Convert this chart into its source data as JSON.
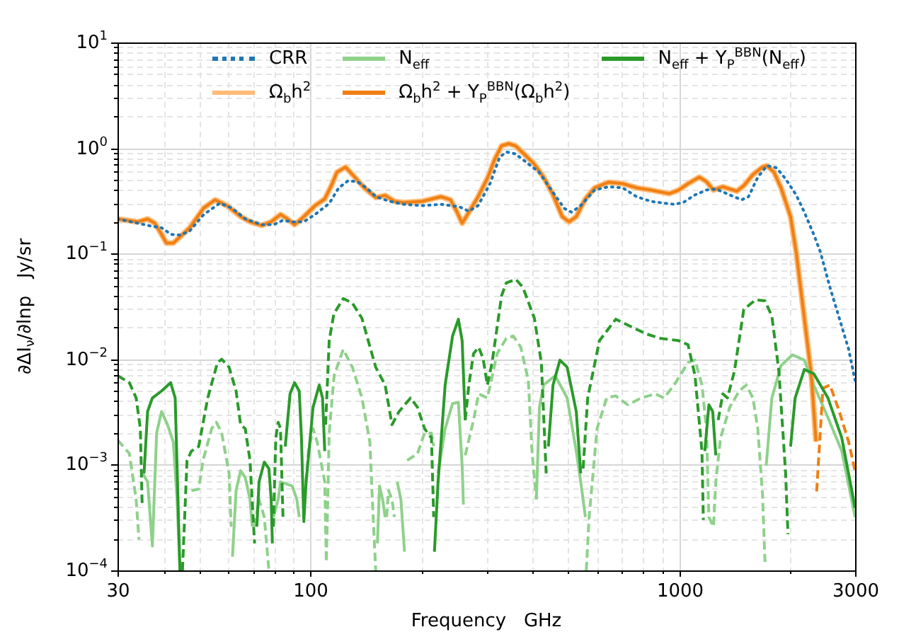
{
  "chart_data": {
    "type": "line",
    "xlabel": "Frequency   GHz",
    "ylabel": "∂ΔI$_{ν}$/∂lnp   Jy/sr",
    "log": "xy",
    "xlim": [
      30,
      3000
    ],
    "ylim": [
      0.0001,
      10
    ],
    "xticks": [
      30,
      {
        "value": 40,
        "label": null
      },
      {
        "value": 50,
        "label": null
      },
      {
        "value": 60,
        "label": null
      },
      {
        "value": 70,
        "label": null
      },
      {
        "value": 80,
        "label": null
      },
      {
        "value": 90,
        "label": null
      },
      100,
      {
        "value": 200,
        "label": null
      },
      {
        "value": 300,
        "label": null
      },
      {
        "value": 400,
        "label": null
      },
      {
        "value": 500,
        "label": null
      },
      {
        "value": 600,
        "label": null
      },
      {
        "value": 700,
        "label": null
      },
      {
        "value": 800,
        "label": null
      },
      {
        "value": 900,
        "label": null
      },
      1000,
      {
        "value": 2000,
        "label": null
      },
      3000
    ],
    "yticks": [
      {
        "value": 0.0001,
        "label": "10$^{−4}$"
      },
      {
        "value": 0.0002,
        "label": null
      },
      {
        "value": 0.0003,
        "label": null
      },
      {
        "value": 0.0004,
        "label": null
      },
      {
        "value": 0.0005,
        "label": null
      },
      {
        "value": 0.0006,
        "label": null
      },
      {
        "value": 0.0007,
        "label": null
      },
      {
        "value": 0.0008,
        "label": null
      },
      {
        "value": 0.0009,
        "label": null
      },
      {
        "value": 0.001,
        "label": "10$^{−3}$"
      },
      {
        "value": 0.002,
        "label": null
      },
      {
        "value": 0.003,
        "label": null
      },
      {
        "value": 0.004,
        "label": null
      },
      {
        "value": 0.005,
        "label": null
      },
      {
        "value": 0.006,
        "label": null
      },
      {
        "value": 0.007,
        "label": null
      },
      {
        "value": 0.008,
        "label": null
      },
      {
        "value": 0.009,
        "label": null
      },
      {
        "value": 0.01,
        "label": "10$^{−2}$"
      },
      {
        "value": 0.02,
        "label": null
      },
      {
        "value": 0.03,
        "label": null
      },
      {
        "value": 0.04,
        "label": null
      },
      {
        "value": 0.05,
        "label": null
      },
      {
        "value": 0.06,
        "label": null
      },
      {
        "value": 0.07,
        "label": null
      },
      {
        "value": 0.08,
        "label": null
      },
      {
        "value": 0.09,
        "label": null
      },
      {
        "value": 0.1,
        "label": "10$^{−1}$"
      },
      {
        "value": 0.2,
        "label": null
      },
      {
        "value": 0.3,
        "label": null
      },
      {
        "value": 0.4,
        "label": null
      },
      {
        "value": 0.5,
        "label": null
      },
      {
        "value": 0.6,
        "label": null
      },
      {
        "value": 0.7,
        "label": null
      },
      {
        "value": 0.8,
        "label": null
      },
      {
        "value": 0.9,
        "label": null
      },
      {
        "value": 1,
        "label": "10$^{0}$"
      },
      {
        "value": 2,
        "label": null
      },
      {
        "value": 3,
        "label": null
      },
      {
        "value": 4,
        "label": null
      },
      {
        "value": 5,
        "label": null
      },
      {
        "value": 6,
        "label": null
      },
      {
        "value": 7,
        "label": null
      },
      {
        "value": 8,
        "label": null
      },
      {
        "value": 9,
        "label": null
      },
      {
        "value": 10,
        "label": "10$^{1}$"
      }
    ],
    "grid": true,
    "legend": "top",
    "series": [
      {
        "name": "CRR",
        "color": "#1f77b4",
        "line_style": "dotted",
        "x": [
          30,
          34.1,
          36.2,
          39.5,
          41.9,
          44.4,
          47.1,
          51.4,
          56.8,
          61.2,
          66.7,
          73.8,
          79.5,
          84.2,
          89.2,
          95.9,
          103,
          112.6,
          119.4,
          126.6,
          134,
          142,
          150.6,
          164,
          179,
          201,
          226,
          254,
          269,
          285,
          307,
          326,
          340,
          360,
          382,
          417,
          455,
          489,
          511,
          541,
          590,
          644,
          703,
          767,
          837,
          914,
          968,
          1026,
          1104,
          1186,
          1257,
          1371,
          1476,
          1542,
          1634,
          1731,
          1836,
          1944,
          2076,
          2185,
          2317,
          2415,
          2564,
          2718,
          2880,
          3000
        ],
        "values": [
          0.213,
          0.194,
          0.185,
          0.176,
          0.152,
          0.15,
          0.164,
          0.235,
          0.3,
          0.271,
          0.213,
          0.188,
          0.188,
          0.207,
          0.2,
          0.2,
          0.235,
          0.3,
          0.42,
          0.49,
          0.48,
          0.42,
          0.346,
          0.313,
          0.293,
          0.285,
          0.293,
          0.277,
          0.252,
          0.285,
          0.46,
          0.82,
          0.92,
          0.88,
          0.75,
          0.59,
          0.38,
          0.267,
          0.247,
          0.285,
          0.4,
          0.43,
          0.42,
          0.346,
          0.313,
          0.3,
          0.293,
          0.305,
          0.36,
          0.4,
          0.41,
          0.36,
          0.323,
          0.346,
          0.53,
          0.68,
          0.65,
          0.51,
          0.36,
          0.247,
          0.152,
          0.104,
          0.048,
          0.0244,
          0.0125,
          0.0063
        ]
      },
      {
        "name": "Ω$_{b}$h$^{2}$",
        "color": "#ffbb78",
        "x": [
          30,
          34.1,
          36.2,
          37.9,
          39.5,
          40.7,
          42.5,
          44.4,
          47.1,
          51.4,
          55.2,
          59.4,
          64.8,
          68.7,
          73.8,
          78.3,
          83,
          86.7,
          90.6,
          94.6,
          103,
          109.4,
          114,
          118,
          124.6,
          132,
          140,
          150.6,
          159.6,
          169,
          179,
          201,
          226,
          240,
          250,
          258,
          269,
          285,
          303,
          316,
          330,
          345,
          360,
          382,
          404,
          429,
          455,
          482,
          503,
          526,
          557,
          590,
          644,
          703,
          767,
          837,
          940,
          997,
          1057,
          1135,
          1186,
          1239,
          1312,
          1371,
          1433,
          1497,
          1585,
          1683,
          1731,
          1808,
          1889,
          2005,
          2076,
          2185,
          2283,
          2350
        ],
        "values": [
          0.213,
          0.2,
          0.213,
          0.194,
          0.152,
          0.126,
          0.126,
          0.145,
          0.176,
          0.271,
          0.323,
          0.285,
          0.224,
          0.2,
          0.185,
          0.2,
          0.235,
          0.213,
          0.188,
          0.213,
          0.285,
          0.33,
          0.44,
          0.59,
          0.66,
          0.53,
          0.42,
          0.34,
          0.356,
          0.313,
          0.305,
          0.313,
          0.346,
          0.323,
          0.247,
          0.194,
          0.247,
          0.346,
          0.53,
          0.78,
          1.05,
          1.1,
          1.05,
          0.86,
          0.71,
          0.53,
          0.36,
          0.224,
          0.2,
          0.224,
          0.33,
          0.42,
          0.475,
          0.46,
          0.42,
          0.4,
          0.37,
          0.4,
          0.46,
          0.53,
          0.48,
          0.4,
          0.43,
          0.41,
          0.39,
          0.44,
          0.56,
          0.66,
          0.68,
          0.59,
          0.42,
          0.224,
          0.104,
          0.0244,
          0.007,
          0.00166
        ]
      },
      {
        "name": "N$_{eff}$",
        "color": "#8fd18b",
        "x": [
          35.1,
          36.2,
          37.3,
          38.3,
          39.5,
          41,
          42.5,
          43.5,
          44.3,
          50,
          61.5,
          62.9,
          64.7,
          66.6,
          68.6,
          69.6,
          70,
          79.4,
          81.8,
          83,
          89.3,
          91.9,
          93.3,
          95,
          152,
          154,
          157,
          159.5,
          160,
          172,
          176,
          180,
          200,
          222,
          232,
          243,
          252,
          258,
          260,
          300,
          410,
          418,
          429,
          461,
          497,
          526,
          541,
          557,
          1000,
          1722,
          1784,
          1889,
          2028,
          2185,
          2317,
          2532,
          2760,
          3000
        ],
        "values": [
          0.00083,
          0.00069,
          0.00017,
          0.002,
          0.0032,
          0.0024,
          0.00164,
          0.00047,
          0.0001,
          null,
          0.000135,
          0.00057,
          0.00088,
          0.00076,
          0.00047,
          0.00026,
          null,
          0.00032,
          0.00047,
          0.00069,
          0.00063,
          0.00047,
          0.00032,
          null,
          0.00018,
          0.00063,
          0.00047,
          0.00032,
          null,
          0.00069,
          0.00047,
          0.00015,
          null,
          0.00083,
          0.0022,
          0.0038,
          0.0039,
          0.00098,
          0.00042,
          null,
          0.00047,
          0.0035,
          0.0057,
          0.007,
          0.0043,
          0.00135,
          0.00069,
          0.00032,
          null,
          0.00098,
          0.0043,
          0.0087,
          0.011,
          0.0098,
          0.0057,
          0.0028,
          0.00135,
          0.00032
        ]
      },
      {
        "color": "#8fd18b",
        "line_style": "dashed",
        "x": [
          30,
          32.3,
          33.7,
          34.3,
          40,
          47.6,
          49.8,
          51.2,
          54,
          55.6,
          57.5,
          60.2,
          61,
          65,
          70.6,
          72.6,
          75,
          77.2,
          85,
          96,
          98.8,
          101.7,
          104.4,
          109.4,
          110.5,
          112.5,
          116,
          122.8,
          130,
          138,
          145,
          148,
          150.4,
          151,
          161,
          163,
          166.5,
          169,
          170,
          183,
          195.3,
          204,
          213,
          216,
          240,
          263,
          277,
          286,
          302,
          321,
          340,
          355,
          372,
          390,
          399,
          410,
          500,
          560,
          570,
          599,
          636,
          673,
          725,
          790,
          861,
          910,
          969,
          1057,
          1104,
          1153,
          1186,
          1204,
          1239,
          1257,
          1295,
          1371,
          1455,
          1521,
          1585,
          1634,
          1683,
          1709
        ],
        "values": [
          0.00172,
          0.00128,
          0.00047,
          0.000196,
          null,
          0.00057,
          0.00059,
          0.00111,
          0.0022,
          0.00253,
          0.002,
          0.00083,
          0.00026,
          null,
          0.00026,
          0.00047,
          0.00032,
          0.0001,
          null,
          0.00039,
          0.00135,
          0.0022,
          0.00164,
          0.00069,
          0.00012,
          0.002,
          0.007,
          0.0124,
          0.0084,
          0.0043,
          0.00164,
          0.00032,
          0.0001,
          null,
          0.00032,
          0.00057,
          0.00047,
          0.00032,
          null,
          0.0011,
          0.00128,
          0.002,
          0.002,
          0.0015,
          null,
          0.00123,
          0.00265,
          0.0047,
          0.0043,
          0.0113,
          0.0158,
          0.0166,
          0.013,
          0.0063,
          0.00135,
          0.00047,
          null,
          0.0001,
          0.00032,
          0.0022,
          0.0043,
          0.0045,
          0.0037,
          0.0043,
          0.0047,
          0.0043,
          0.0057,
          0.0093,
          0.0098,
          0.0057,
          0.0022,
          0.00032,
          0.00026,
          0.00069,
          0.0018,
          0.0035,
          0.005,
          0.0057,
          0.0043,
          0.0022,
          0.00052,
          0.00012
        ]
      },
      {
        "name": "Ω$_{b}$h$^{2}$ + Y$_{P}$$^{BBN}$(Ω$_{b}$h$^{2}$)",
        "color": "#f07f12",
        "x": [
          30,
          34.1,
          36.2,
          37.9,
          39.5,
          40.7,
          42.5,
          44.4,
          47.1,
          51.4,
          55.2,
          59.4,
          64.8,
          68.7,
          73.8,
          78.3,
          83,
          86.7,
          90.6,
          94.6,
          103,
          109.4,
          114,
          118,
          124.6,
          132,
          140,
          150.6,
          159.6,
          169,
          179,
          201,
          226,
          240,
          250,
          258,
          269,
          285,
          303,
          316,
          330,
          345,
          360,
          382,
          404,
          429,
          455,
          482,
          503,
          526,
          557,
          590,
          644,
          703,
          767,
          837,
          940,
          997,
          1057,
          1135,
          1186,
          1239,
          1312,
          1371,
          1433,
          1497,
          1585,
          1683,
          1731,
          1808,
          1889,
          2005,
          2076,
          2185,
          2283,
          2350
        ],
        "values": [
          0.213,
          0.2,
          0.213,
          0.194,
          0.152,
          0.126,
          0.126,
          0.145,
          0.176,
          0.271,
          0.323,
          0.285,
          0.224,
          0.2,
          0.185,
          0.2,
          0.235,
          0.213,
          0.188,
          0.213,
          0.285,
          0.33,
          0.44,
          0.59,
          0.66,
          0.53,
          0.42,
          0.34,
          0.356,
          0.313,
          0.305,
          0.313,
          0.346,
          0.323,
          0.247,
          0.194,
          0.247,
          0.346,
          0.53,
          0.78,
          1.05,
          1.1,
          1.05,
          0.86,
          0.71,
          0.53,
          0.36,
          0.224,
          0.2,
          0.224,
          0.33,
          0.42,
          0.475,
          0.46,
          0.42,
          0.4,
          0.37,
          0.4,
          0.46,
          0.53,
          0.48,
          0.4,
          0.43,
          0.41,
          0.39,
          0.44,
          0.56,
          0.66,
          0.68,
          0.59,
          0.42,
          0.224,
          0.104,
          0.0244,
          0.007,
          0.00166
        ]
      },
      {
        "color": "#f07f12",
        "line_style": "dashed",
        "x": [
          2360,
          2454,
          2564,
          2718,
          2880,
          3000
        ],
        "values": [
          0.00056,
          0.0053,
          0.0057,
          0.0032,
          0.00166,
          0.00087
        ]
      },
      {
        "name": "N$_{eff}$ + Y$_{P}$$^{BBN}$(N$_{eff}$)",
        "color": "#2a9a2a",
        "x": [
          35.4,
          36.2,
          37.3,
          39.5,
          41.8,
          43,
          44.3,
          45,
          71.6,
          72.6,
          75,
          77.2,
          78.3,
          78.9,
          80,
          85.5,
          88.1,
          90.6,
          93.3,
          94.6,
          96,
          97.4,
          101.7,
          105.7,
          107.9,
          109.4,
          150,
          217,
          222,
          232,
          243,
          252,
          258,
          263,
          300,
          442,
          455,
          475,
          497,
          526,
          541,
          800,
          1174,
          1204,
          1233,
          1257,
          1500,
          2005,
          2063,
          2185,
          2317,
          2532,
          2760,
          3000
        ],
        "values": [
          0.00083,
          0.0032,
          0.0043,
          0.005,
          0.006,
          0.0043,
          0.0001,
          null,
          0.00026,
          0.00069,
          0.00106,
          0.00092,
          0.00047,
          0.00018,
          null,
          0.00149,
          0.0047,
          0.006,
          0.005,
          0.0018,
          0.00029,
          0.00069,
          0.0035,
          0.0057,
          0.0043,
          0.00135,
          null,
          0.00015,
          0.00069,
          0.0057,
          0.0166,
          0.0239,
          0.015,
          0.00265,
          null,
          0.00149,
          0.0057,
          0.0098,
          0.0084,
          0.0032,
          0.00083,
          null,
          0.00135,
          0.0037,
          0.0032,
          0.00123,
          null,
          0.00149,
          0.0043,
          0.008,
          0.0073,
          0.0043,
          0.0018,
          0.00039
        ]
      },
      {
        "color": "#2a9a2a",
        "line_style": "dashed",
        "x": [
          30,
          32.3,
          33.7,
          34.6,
          35,
          40,
          45,
          46.3,
          47.6,
          49.8,
          52.7,
          56,
          57.5,
          60.2,
          62.9,
          64.7,
          66.6,
          68.6,
          70.6,
          75,
          79.4,
          80.6,
          81.8,
          83,
          84.3,
          95,
          110,
          112.5,
          115.8,
          122.8,
          130,
          138,
          150.4,
          159.5,
          166.5,
          174,
          187,
          195.3,
          204,
          213,
          216,
          240,
          263,
          269,
          277,
          286,
          294,
          302,
          311,
          330,
          340,
          361,
          377,
          405,
          423,
          436,
          500,
          549,
          565,
          608,
          673,
          725,
          813,
          887,
          997,
          1057,
          1104,
          1153,
          1163,
          1200,
          1276,
          1313,
          1352,
          1412,
          1497,
          1611,
          1709,
          1784,
          1864,
          1944,
          1973
        ],
        "values": [
          0.007,
          0.006,
          0.0043,
          0.0022,
          0.0004,
          null,
          0.0001,
          0.0011,
          0.00135,
          0.00149,
          0.0043,
          0.0093,
          0.01,
          0.0084,
          0.005,
          0.0024,
          0.0022,
          0.0011,
          0.00018,
          null,
          0.00026,
          0.0018,
          0.00253,
          0.0022,
          0.00032,
          null,
          0.0024,
          0.015,
          0.0269,
          0.0376,
          0.034,
          0.0244,
          0.0084,
          0.0057,
          0.0024,
          0.0032,
          0.0043,
          0.0035,
          0.0022,
          0.0018,
          0.00032,
          null,
          0.00265,
          0.0057,
          0.0113,
          0.013,
          0.0102,
          0.0057,
          0.0093,
          0.04,
          0.053,
          0.057,
          0.048,
          0.0244,
          0.0093,
          0.00083,
          null,
          0.00092,
          0.0043,
          0.015,
          0.0239,
          0.0211,
          0.0174,
          0.0158,
          0.015,
          0.0137,
          0.007,
          0.00135,
          0.0003,
          null,
          0.00265,
          0.0047,
          0.0043,
          0.0077,
          0.0296,
          0.0365,
          0.0358,
          0.0256,
          0.0077,
          0.00083,
          0.00022
        ]
      }
    ]
  }
}
